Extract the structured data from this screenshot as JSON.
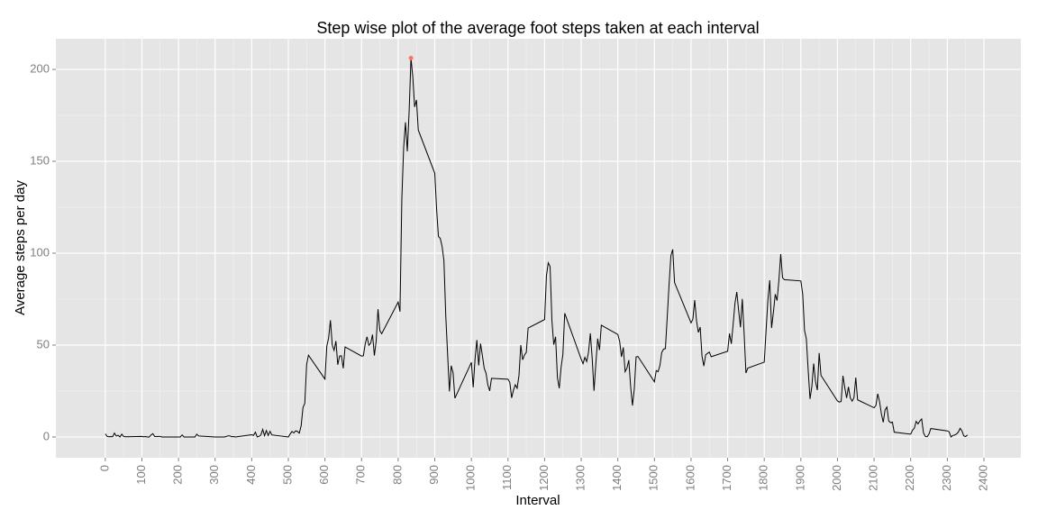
{
  "chart_data": {
    "type": "line",
    "title": "Step wise plot of the average foot steps taken at each interval",
    "x_label": "Interval",
    "y_label": "Average steps per day",
    "x": [
      0,
      5,
      10,
      15,
      20,
      25,
      30,
      35,
      40,
      45,
      50,
      55,
      100,
      105,
      110,
      115,
      120,
      125,
      130,
      135,
      140,
      145,
      150,
      155,
      200,
      205,
      210,
      215,
      220,
      225,
      230,
      235,
      240,
      245,
      250,
      255,
      300,
      305,
      310,
      315,
      320,
      325,
      330,
      335,
      340,
      345,
      350,
      355,
      400,
      405,
      410,
      415,
      420,
      425,
      430,
      435,
      440,
      445,
      450,
      455,
      500,
      505,
      510,
      515,
      520,
      525,
      530,
      535,
      540,
      545,
      550,
      555,
      600,
      605,
      610,
      615,
      620,
      625,
      630,
      635,
      640,
      645,
      650,
      655,
      700,
      705,
      710,
      715,
      720,
      725,
      730,
      735,
      740,
      745,
      750,
      755,
      800,
      805,
      810,
      815,
      820,
      825,
      830,
      835,
      840,
      845,
      850,
      855,
      900,
      905,
      910,
      915,
      920,
      925,
      930,
      935,
      940,
      945,
      950,
      955,
      1000,
      1005,
      1010,
      1015,
      1020,
      1025,
      1030,
      1035,
      1040,
      1045,
      1050,
      1055,
      1100,
      1105,
      1110,
      1115,
      1120,
      1125,
      1130,
      1135,
      1140,
      1145,
      1150,
      1155,
      1200,
      1205,
      1210,
      1215,
      1220,
      1225,
      1230,
      1235,
      1240,
      1245,
      1250,
      1255,
      1300,
      1305,
      1310,
      1315,
      1320,
      1325,
      1330,
      1335,
      1340,
      1345,
      1350,
      1355,
      1400,
      1405,
      1410,
      1415,
      1420,
      1425,
      1430,
      1435,
      1440,
      1445,
      1450,
      1455,
      1500,
      1505,
      1510,
      1515,
      1520,
      1525,
      1530,
      1535,
      1540,
      1545,
      1550,
      1555,
      1600,
      1605,
      1610,
      1615,
      1620,
      1625,
      1630,
      1635,
      1640,
      1645,
      1650,
      1655,
      1700,
      1705,
      1710,
      1715,
      1720,
      1725,
      1730,
      1735,
      1740,
      1745,
      1750,
      1755,
      1800,
      1805,
      1810,
      1815,
      1820,
      1825,
      1830,
      1835,
      1840,
      1845,
      1850,
      1855,
      1900,
      1905,
      1910,
      1915,
      1920,
      1925,
      1930,
      1935,
      1940,
      1945,
      1950,
      1955,
      2000,
      2005,
      2010,
      2015,
      2020,
      2025,
      2030,
      2035,
      2040,
      2045,
      2050,
      2055,
      2100,
      2105,
      2110,
      2115,
      2120,
      2125,
      2130,
      2135,
      2140,
      2145,
      2150,
      2155,
      2200,
      2205,
      2210,
      2215,
      2220,
      2225,
      2230,
      2235,
      2240,
      2245,
      2250,
      2255,
      2300,
      2305,
      2310,
      2315,
      2320,
      2325,
      2330,
      2335,
      2340,
      2345,
      2350,
      2355
    ],
    "values": [
      1.7,
      0.3,
      0.1,
      0.2,
      0.1,
      2.1,
      0.5,
      0.9,
      0,
      1.5,
      0.3,
      0.1,
      0.3,
      0.1,
      0.2,
      0,
      0,
      1.1,
      1.8,
      0.2,
      0.2,
      0.3,
      0.3,
      0,
      0,
      0,
      1.1,
      0,
      0,
      0,
      0,
      0,
      0,
      0,
      1.5,
      0.5,
      0,
      0,
      0,
      0,
      0,
      0,
      0.2,
      0.6,
      0.6,
      0.1,
      0.2,
      0,
      1.2,
      0.9,
      2.6,
      0,
      0.3,
      1.1,
      4.1,
      0.7,
      3.5,
      0.8,
      3.1,
      1.1,
      0,
      1.6,
      3,
      2.2,
      3.3,
      3,
      2.1,
      6.1,
      16,
      18.3,
      39.5,
      44.5,
      31.5,
      49.3,
      53.8,
      63.5,
      50,
      47.1,
      52.2,
      39.3,
      44,
      44.2,
      37.4,
      49,
      44,
      44.2,
      50.6,
      54.5,
      49.9,
      51,
      55.7,
      44.3,
      52.3,
      69.5,
      57.8,
      56.2,
      73.4,
      68.2,
      129.4,
      157.5,
      171.2,
      155.4,
      177.3,
      206.2,
      195.9,
      179.6,
      183.4,
      167,
      143.5,
      124,
      109.1,
      108.1,
      103.7,
      96,
      66.2,
      45.2,
      24.8,
      38.8,
      35,
      21.1,
      40.6,
      27,
      42.4,
      52.7,
      38.9,
      50.8,
      44.3,
      37.4,
      34.7,
      28.3,
      25.1,
      31.9,
      31.4,
      29.7,
      21.3,
      25.5,
      28.4,
      26.5,
      33.4,
      50,
      42,
      44.6,
      46,
      59.3,
      63.9,
      87.7,
      94.8,
      92.8,
      63.4,
      50.2,
      54.5,
      32.4,
      26.5,
      37.7,
      45,
      67.3,
      42.3,
      39.9,
      43.3,
      41,
      46.2,
      56.4,
      42.8,
      25.1,
      40,
      53.5,
      47.3,
      60.8,
      55.8,
      52,
      43.6,
      48.7,
      35.5,
      37.5,
      41.8,
      27.5,
      17.1,
      26.1,
      43.6,
      43.8,
      30,
      36.1,
      35.5,
      38.8,
      46,
      47.8,
      48.1,
      65.3,
      82.9,
      98.7,
      102.1,
      84,
      62.1,
      64.1,
      74.5,
      63.2,
      56.9,
      59.8,
      43.9,
      38.6,
      44.7,
      45.5,
      46.2,
      43.7,
      46.6,
      56.3,
      50.7,
      61.2,
      72.7,
      78.9,
      68.9,
      59.7,
      75.1,
      56.5,
      34.8,
      37.5,
      40.7,
      58,
      74.7,
      85.3,
      59.3,
      67.8,
      77.7,
      74.2,
      85.3,
      99.5,
      86.6,
      85.6,
      84.9,
      77.8,
      58,
      53.4,
      36.3,
      20.7,
      27.4,
      40,
      30.2,
      25.5,
      45.7,
      33.5,
      19.6,
      19,
      19.3,
      33.3,
      26.8,
      21.2,
      27.3,
      21.3,
      19.5,
      21.3,
      32.3,
      20.2,
      15.9,
      17.2,
      23.5,
      19.2,
      12.5,
      8,
      14.7,
      16.3,
      8.7,
      7.8,
      8.1,
      2.6,
      1.5,
      3.7,
      4.8,
      8.5,
      7.1,
      8.7,
      9.8,
      2.2,
      0.3,
      0.1,
      1.6,
      4.6,
      3.3,
      2.8,
      0,
      0.8,
      1,
      1.6,
      2.6,
      4.7,
      3.3,
      0.6,
      0.2,
      1.1
    ],
    "color": "#000000",
    "highlight": {
      "x": 835,
      "y": 206.2,
      "color": "#f8766d"
    },
    "xlim": [
      -135,
      2501
    ],
    "ylim": [
      -11.3,
      216.7
    ],
    "xticks": [
      0,
      100,
      200,
      300,
      400,
      500,
      600,
      700,
      800,
      900,
      1000,
      1100,
      1200,
      1300,
      1400,
      1500,
      1600,
      1700,
      1800,
      1900,
      2000,
      2100,
      2200,
      2300,
      2400
    ],
    "x_minor_ticks": [
      50,
      150,
      250,
      350,
      450,
      550,
      650,
      750,
      850,
      950,
      1050,
      1150,
      1250,
      1350,
      1450,
      1550,
      1650,
      1750,
      1850,
      1950,
      2050,
      2150,
      2250,
      2350
    ],
    "yticks": [
      0,
      50,
      100,
      150,
      200
    ],
    "y_minor_ticks": [
      25,
      75,
      125,
      175
    ],
    "grid": true
  }
}
